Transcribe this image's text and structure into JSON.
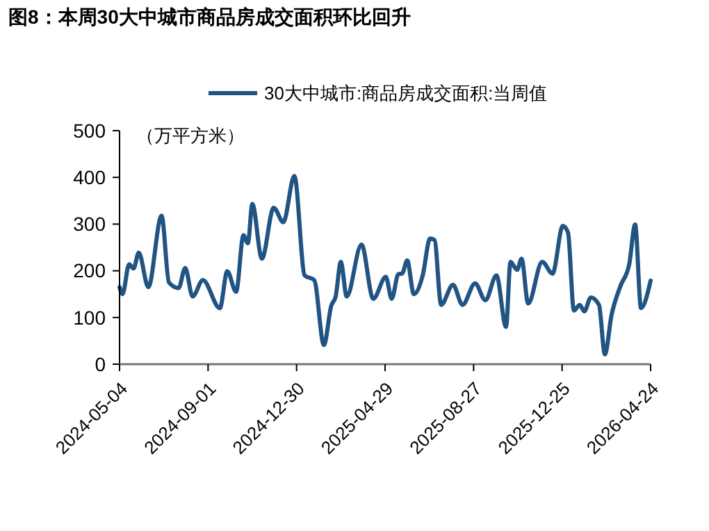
{
  "chart_data": {
    "type": "line",
    "title": "图8：本周30大中城市商品房成交面积环比回升",
    "ylabel": "（万平方米）",
    "x": [
      "2024-05-04",
      "2024-05-08",
      "2024-05-17",
      "2024-05-23",
      "2024-05-30",
      "2024-06-12",
      "2024-06-30",
      "2024-07-10",
      "2024-07-23",
      "2024-08-01",
      "2024-08-11",
      "2024-08-25",
      "2024-09-17",
      "2024-09-27",
      "2024-10-09",
      "2024-10-19",
      "2024-10-25",
      "2024-10-31",
      "2024-11-13",
      "2024-11-29",
      "2024-12-12",
      "2024-12-27",
      "2025-01-10",
      "2025-01-23",
      "2025-02-05",
      "2025-02-15",
      "2025-02-21",
      "2025-02-28",
      "2025-03-08",
      "2025-03-28",
      "2025-04-13",
      "2025-04-30",
      "2025-05-08",
      "2025-05-17",
      "2025-05-22",
      "2025-05-29",
      "2025-06-07",
      "2025-06-19",
      "2025-06-29",
      "2025-07-05",
      "2025-07-14",
      "2025-07-30",
      "2025-08-12",
      "2025-08-29",
      "2025-09-12",
      "2025-09-27",
      "2025-10-10",
      "2025-10-16",
      "2025-10-25",
      "2025-10-31",
      "2025-11-09",
      "2025-11-28",
      "2025-12-12",
      "2025-12-26",
      "2026-01-02",
      "2026-01-10",
      "2026-01-18",
      "2026-01-24",
      "2026-02-02",
      "2026-02-13",
      "2026-02-21",
      "2026-03-02",
      "2026-03-14",
      "2026-03-26",
      "2026-04-03",
      "2026-04-11",
      "2026-04-24"
    ],
    "series": [
      {
        "name": "30大中城市:商品房成交面积:当周值",
        "color": "#215483",
        "values": [
          165,
          150,
          214,
          205,
          239,
          165,
          318,
          175,
          163,
          206,
          145,
          180,
          120,
          199,
          155,
          276,
          259,
          343,
          226,
          335,
          304,
          403,
          190,
          180,
          41,
          125,
          145,
          219,
          145,
          256,
          140,
          187,
          140,
          193,
          194,
          222,
          150,
          190,
          269,
          266,
          127,
          170,
          127,
          173,
          137,
          190,
          80,
          219,
          202,
          226,
          130,
          219,
          194,
          296,
          282,
          115,
          127,
          113,
          143,
          127,
          21,
          105,
          167,
          214,
          299,
          120,
          179
        ]
      }
    ],
    "xlim": [
      "2024-05-04",
      "2026-04-24"
    ],
    "xticks": [
      "2024-05-04",
      "2024-09-01",
      "2024-12-30",
      "2025-04-29",
      "2025-08-27",
      "2025-12-25",
      "2026-04-24"
    ],
    "ylim": [
      0,
      500
    ],
    "yticks": [
      0,
      100,
      200,
      300,
      400,
      500
    ],
    "grid": false,
    "legend": "top",
    "marker": "none",
    "line_style": "solid"
  }
}
